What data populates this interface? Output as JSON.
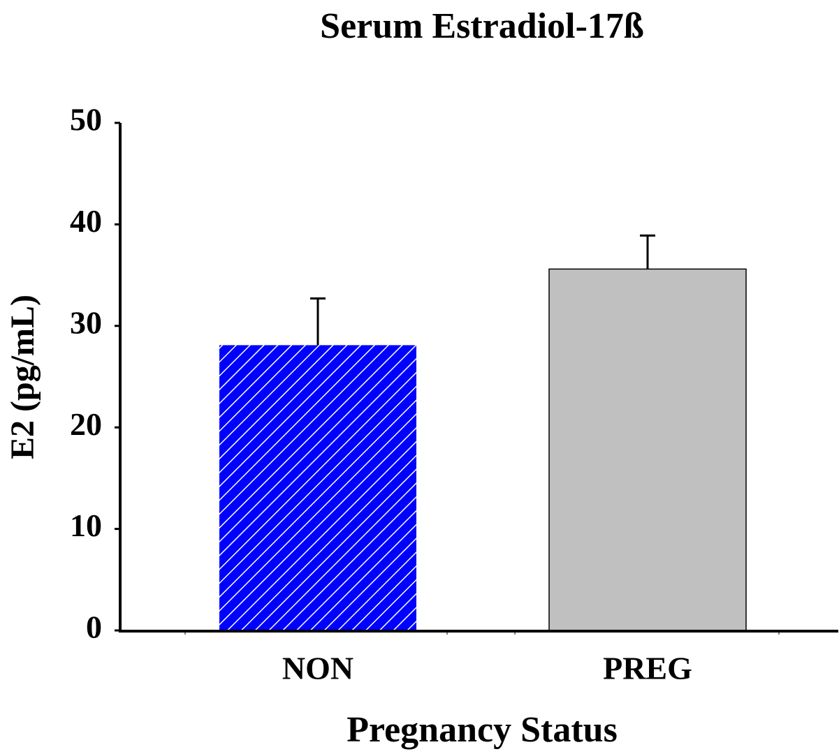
{
  "chart_data": {
    "type": "bar",
    "title": "Serum Estradiol-17ß",
    "xlabel": "Pregnancy Status",
    "ylabel": "E2 (pg/mL)",
    "categories": [
      "NON",
      "PREG"
    ],
    "values": [
      28.1,
      35.6
    ],
    "errors": [
      4.6,
      3.3
    ],
    "colors": [
      "#0000ff",
      "#c0c0c0"
    ],
    "hatch": [
      true,
      false
    ],
    "ylim": [
      0,
      50
    ],
    "yticks": [
      0,
      10,
      20,
      30,
      40,
      50
    ],
    "grid": false
  }
}
